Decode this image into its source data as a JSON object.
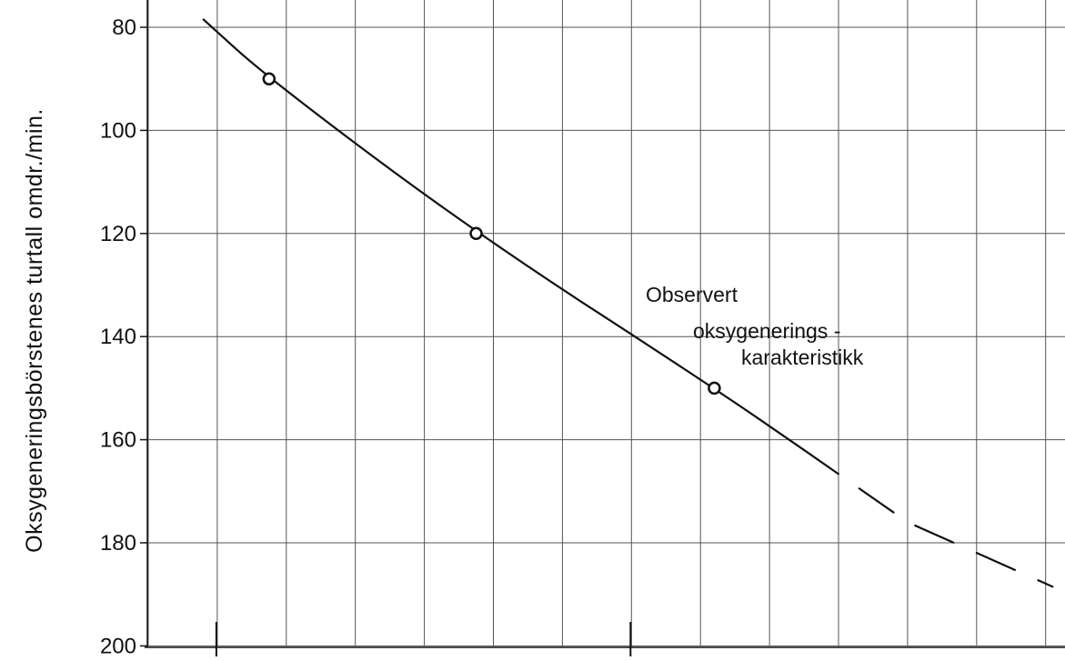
{
  "chart_data": {
    "type": "line",
    "title": "",
    "xlabel": "",
    "ylabel": "Oksygeneringsbörstenes  turtall  omdr./min.",
    "y_inverted": true,
    "ylim": [
      80,
      200
    ],
    "yticks": [
      80,
      100,
      120,
      140,
      160,
      180,
      200
    ],
    "grid": true,
    "xlim": [
      0,
      12
    ],
    "x_tick_marks": [
      0,
      6
    ],
    "series": [
      {
        "style": "solid",
        "x": [
          -0.2,
          0.75,
          3.75,
          7.2,
          8.5
        ],
        "y": [
          78.5,
          90,
          120,
          150,
          162
        ]
      },
      {
        "style": "dashed",
        "x": [
          8.5,
          10.0,
          12.1
        ],
        "y": [
          162,
          176,
          188.5
        ]
      }
    ],
    "markers": {
      "style": "open-circle",
      "x": [
        0.75,
        3.75,
        7.2
      ],
      "y": [
        90,
        120,
        150
      ]
    },
    "annotation": {
      "lines": [
        "Observert",
        "oksygenerings -",
        "karakteristikk"
      ]
    }
  }
}
